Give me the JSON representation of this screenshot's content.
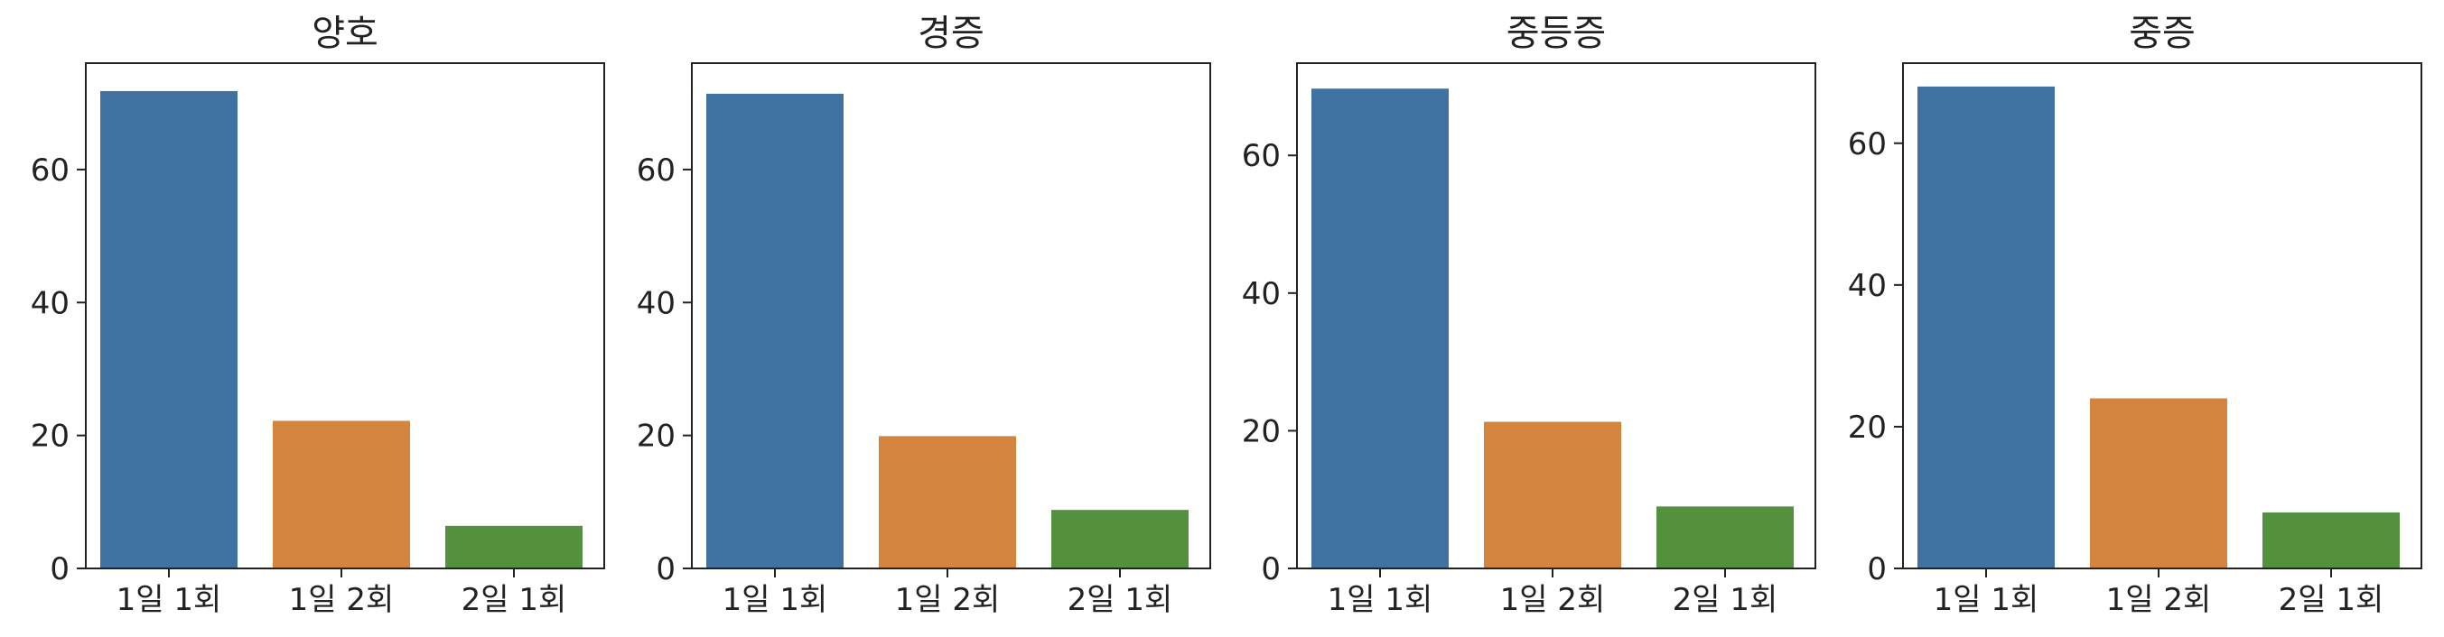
{
  "palette": {
    "1일 1회": "#3f72a0",
    "1일 2회": "#d3843e",
    "2일 1회": "#53913f"
  },
  "chart_data": [
    {
      "type": "bar",
      "title": "양호",
      "categories": [
        "1일 1회",
        "1일 2회",
        "2일 1회"
      ],
      "values": [
        71.8,
        22.2,
        6.4
      ],
      "ylim": [
        0,
        76
      ],
      "yticks": [
        0,
        20,
        40,
        60
      ],
      "grid": false,
      "legend": "none"
    },
    {
      "type": "bar",
      "title": "경증",
      "categories": [
        "1일 1회",
        "1일 2회",
        "2일 1회"
      ],
      "values": [
        71.4,
        19.9,
        8.8
      ],
      "ylim": [
        0,
        76
      ],
      "yticks": [
        0,
        20,
        40,
        60
      ],
      "grid": false,
      "legend": "none"
    },
    {
      "type": "bar",
      "title": "중등증",
      "categories": [
        "1일 1회",
        "1일 2회",
        "2일 1회"
      ],
      "values": [
        69.7,
        21.3,
        9.0
      ],
      "ylim": [
        0,
        73.4
      ],
      "yticks": [
        0,
        20,
        40,
        60
      ],
      "grid": false,
      "legend": "none"
    },
    {
      "type": "bar",
      "title": "중증",
      "categories": [
        "1일 1회",
        "1일 2회",
        "2일 1회"
      ],
      "values": [
        68.0,
        24.0,
        7.9
      ],
      "ylim": [
        0,
        71.3
      ],
      "yticks": [
        0,
        20,
        40,
        60
      ],
      "grid": false,
      "legend": "none"
    }
  ]
}
